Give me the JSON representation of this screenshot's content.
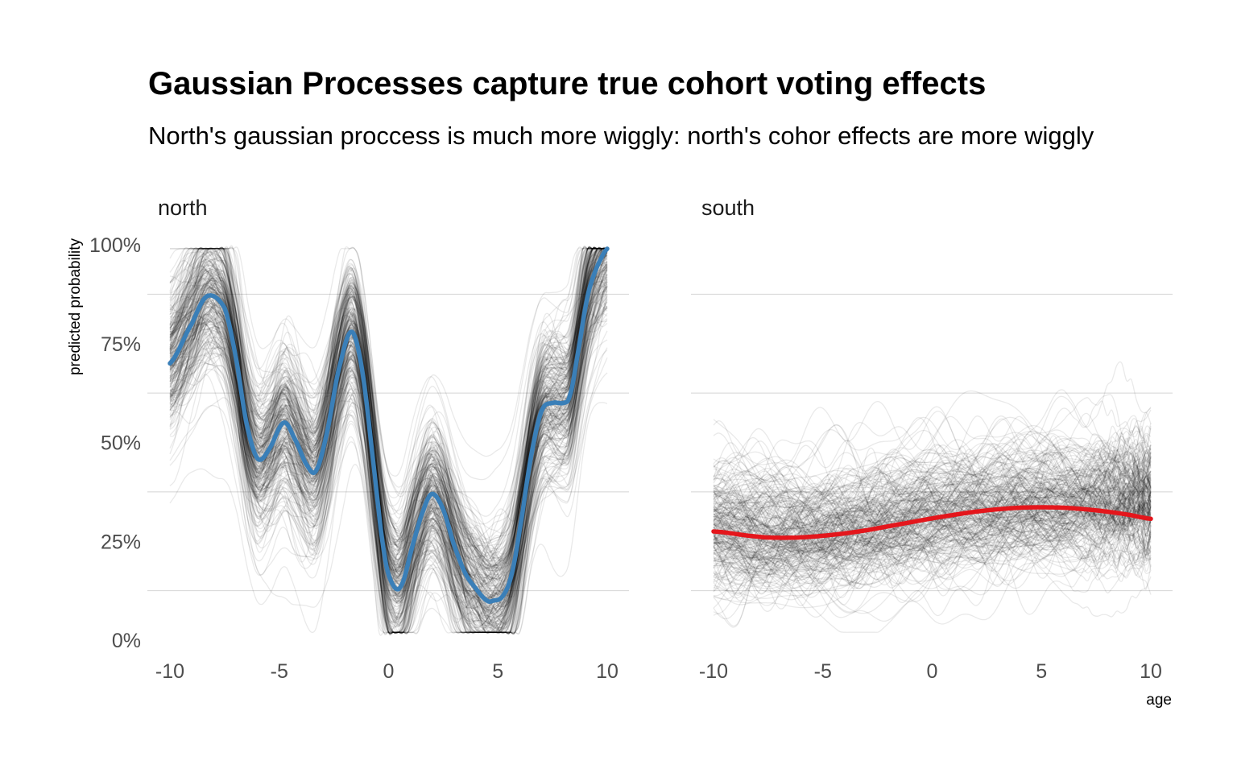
{
  "title": "Gaussian Processes capture true cohort voting effects",
  "subtitle": "North's gaussian proccess is much more wiggly: north's cohor effects are more wiggly",
  "chart_data": {
    "type": "line",
    "title": "Gaussian Processes capture true cohort voting effects",
    "subtitle": "North's gaussian proccess is much more wiggly: north's cohor effects are more wiggly",
    "xlabel": "age",
    "ylabel": "predicted probability",
    "xlim": [
      -10,
      10
    ],
    "ylim": [
      0,
      1
    ],
    "x_ticks": [
      "-10",
      "-5",
      "0",
      "5",
      "10"
    ],
    "y_ticks": [
      "0%",
      "25%",
      "50%",
      "75%",
      "100%"
    ],
    "grid": "horizontal",
    "background_draws": "many faint posterior draws (black, low opacity) per panel",
    "panels": [
      {
        "name": "north",
        "line_color": "#3a7fb8",
        "series": [
          {
            "x": [
              -10,
              -9,
              -8.3,
              -7.5,
              -7,
              -6.5,
              -6,
              -5.5,
              -4.8,
              -4.3,
              -3.7,
              -3.3,
              -2.8,
              -2.3,
              -1.7,
              -1.2,
              -0.7,
              -0.2,
              0.2,
              0.6,
              1.1,
              1.6,
              2,
              2.5,
              3,
              3.5,
              4,
              4.5,
              4.8,
              5.2,
              5.6,
              6,
              6.5,
              7,
              7.5,
              8,
              8.3,
              8.7,
              9.1,
              9.5,
              10
            ],
            "y": [
              0.7,
              0.8,
              0.87,
              0.84,
              0.72,
              0.55,
              0.46,
              0.48,
              0.55,
              0.51,
              0.44,
              0.43,
              0.53,
              0.68,
              0.78,
              0.68,
              0.45,
              0.22,
              0.14,
              0.14,
              0.24,
              0.33,
              0.37,
              0.33,
              0.24,
              0.17,
              0.13,
              0.1,
              0.1,
              0.11,
              0.16,
              0.28,
              0.46,
              0.58,
              0.6,
              0.6,
              0.62,
              0.74,
              0.87,
              0.94,
              0.99
            ]
          }
        ]
      },
      {
        "name": "south",
        "line_color": "#e4161c",
        "series": [
          {
            "x": [
              -10,
              -8,
              -7,
              -6,
              -5,
              -4,
              -3,
              -2,
              -1,
              0,
              1,
              2,
              3,
              4,
              5,
              6,
              7,
              8,
              9,
              10
            ],
            "y": [
              0.275,
              0.262,
              0.259,
              0.26,
              0.264,
              0.27,
              0.278,
              0.288,
              0.298,
              0.308,
              0.317,
              0.325,
              0.331,
              0.335,
              0.336,
              0.335,
              0.331,
              0.325,
              0.317,
              0.307
            ]
          }
        ]
      }
    ]
  }
}
